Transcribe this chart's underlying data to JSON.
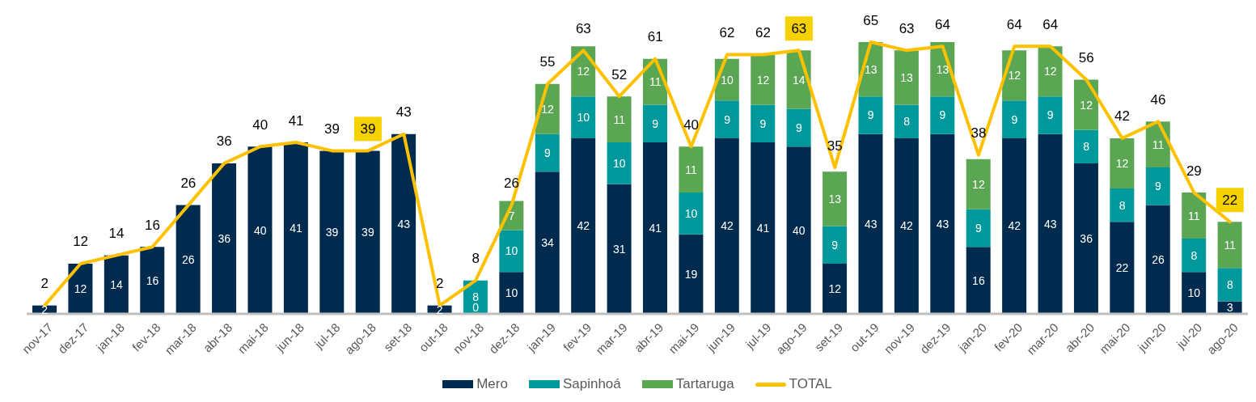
{
  "chart_data": {
    "type": "bar",
    "stacked": true,
    "categories": [
      "nov-17",
      "dez-17",
      "jan-18",
      "fev-18",
      "mar-18",
      "abr-18",
      "mai-18",
      "jun-18",
      "jul-18",
      "ago-18",
      "set-18",
      "out-18",
      "nov-18",
      "dez-18",
      "jan-19",
      "fev-19",
      "mar-19",
      "abr-19",
      "mai-19",
      "jun-19",
      "jul-19",
      "ago-19",
      "set-19",
      "out-19",
      "nov-19",
      "dez-19",
      "jan-20",
      "fev-20",
      "mar-20",
      "abr-20",
      "mai-20",
      "jun-20",
      "jul-20",
      "ago-20"
    ],
    "series": [
      {
        "name": "Mero",
        "color": "#002b4f",
        "values": [
          2,
          12,
          14,
          16,
          26,
          36,
          40,
          41,
          39,
          39,
          43,
          2,
          0,
          10,
          34,
          42,
          31,
          41,
          19,
          42,
          41,
          40,
          12,
          43,
          42,
          43,
          16,
          42,
          43,
          36,
          22,
          26,
          10,
          3
        ]
      },
      {
        "name": "Sapinhoá",
        "color": "#00999b",
        "values": [
          null,
          null,
          null,
          null,
          null,
          null,
          null,
          null,
          null,
          null,
          null,
          null,
          8,
          10,
          9,
          10,
          10,
          9,
          10,
          9,
          9,
          9,
          9,
          9,
          8,
          9,
          9,
          9,
          9,
          8,
          8,
          9,
          8,
          8
        ]
      },
      {
        "name": "Tartaruga",
        "color": "#5ba653",
        "values": [
          null,
          null,
          null,
          null,
          null,
          null,
          null,
          null,
          null,
          null,
          null,
          null,
          null,
          7,
          12,
          12,
          11,
          11,
          11,
          10,
          12,
          14,
          13,
          13,
          13,
          13,
          12,
          12,
          12,
          12,
          12,
          11,
          11,
          11
        ]
      },
      {
        "name": "TOTAL",
        "type": "line",
        "color": "#fdc100",
        "values": [
          2,
          12,
          14,
          16,
          26,
          36,
          40,
          41,
          39,
          39,
          43,
          2,
          8,
          26,
          55,
          63,
          52,
          61,
          40,
          62,
          62,
          63,
          35,
          65,
          63,
          64,
          38,
          64,
          64,
          56,
          42,
          46,
          29,
          22
        ],
        "value_labels": [
          "2",
          "12",
          "14",
          "16",
          "26",
          "36",
          "40",
          "41",
          "39",
          null,
          "43",
          "2",
          "8",
          "26",
          "55",
          "63",
          "52",
          "61",
          "40",
          "62",
          "62",
          null,
          "35",
          "65",
          "63",
          "64",
          "38",
          "64",
          "64",
          "56",
          "42",
          "46",
          "29",
          null
        ]
      }
    ],
    "tick_labels": "x",
    "data_labels": true,
    "legend": "bottom",
    "marker": "none",
    "annotations": [
      {
        "text": "39",
        "x": "ago-18",
        "y": 39
      },
      {
        "text": "63",
        "x": "ago-19",
        "y": 63
      },
      {
        "text": "22",
        "x": "ago-20",
        "y": 22
      }
    ]
  }
}
